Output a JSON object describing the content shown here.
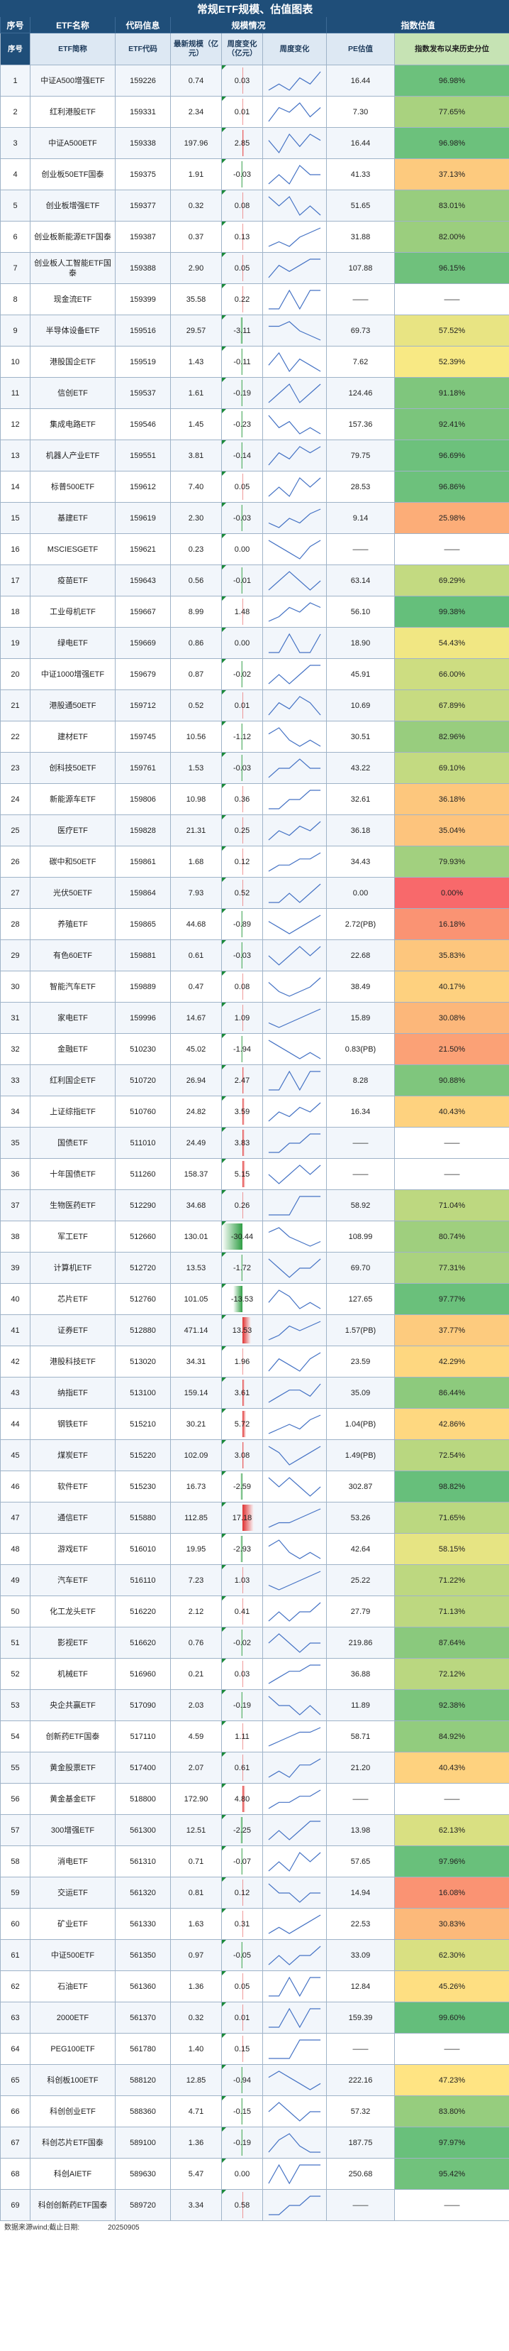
{
  "title": "常规ETF规模、估值图表",
  "groups": {
    "seq": "序号",
    "name": "ETF名称",
    "code": "代码信息",
    "scale": "规模情况",
    "valuation": "指数估值"
  },
  "columns": {
    "name": "ETF简称",
    "code": "ETF代码",
    "scale": "最新规模（亿元）",
    "flow": "周度变化（亿元）",
    "trend": "周度变化",
    "pe": "PE估值",
    "pct": "指数发布以来历史分位"
  },
  "colors": {
    "header": "#1f4e79",
    "pos_flow": "#e03131",
    "neg_flow": "#2f9e44",
    "pct_low": "#f8696b",
    "pct_mid": "#ffeb84",
    "pct_high": "#63be7b"
  },
  "rows": [
    {
      "seq": "1",
      "name": "中证A500增强ETF",
      "code": "159226",
      "scale": "0.74",
      "flow": "0.03",
      "pe": "16.44",
      "pct": "96.98%",
      "trend": [
        3,
        4,
        3,
        5,
        4,
        6
      ]
    },
    {
      "seq": "2",
      "name": "红利港股ETF",
      "code": "159331",
      "scale": "2.34",
      "flow": "0.01",
      "pe": "7.30",
      "pct": "77.65%",
      "trend": [
        2,
        5,
        4,
        6,
        3,
        5
      ]
    },
    {
      "seq": "3",
      "name": "中证A500ETF",
      "code": "159338",
      "scale": "197.96",
      "flow": "2.85",
      "pe": "16.44",
      "pct": "96.98%",
      "trend": [
        5,
        3,
        6,
        4,
        6,
        5
      ]
    },
    {
      "seq": "4",
      "name": "创业板50ETF国泰",
      "code": "159375",
      "scale": "1.91",
      "flow": "-0.03",
      "pe": "41.33",
      "pct": "37.13%",
      "trend": [
        3,
        4,
        3,
        5,
        4,
        4
      ]
    },
    {
      "seq": "5",
      "name": "创业板增强ETF",
      "code": "159377",
      "scale": "0.32",
      "flow": "0.08",
      "pe": "51.65",
      "pct": "83.01%",
      "trend": [
        5,
        4,
        5,
        3,
        4,
        3
      ]
    },
    {
      "seq": "6",
      "name": "创业板新能源ETF国泰",
      "code": "159387",
      "scale": "0.37",
      "flow": "0.13",
      "pe": "31.88",
      "pct": "82.00%",
      "trend": [
        2,
        3,
        2,
        4,
        5,
        6
      ]
    },
    {
      "seq": "7",
      "name": "创业板人工智能ETF国泰",
      "code": "159388",
      "scale": "2.90",
      "flow": "0.05",
      "pe": "107.88",
      "pct": "96.15%",
      "trend": [
        3,
        5,
        4,
        5,
        6,
        6
      ]
    },
    {
      "seq": "8",
      "name": "现金流ETF",
      "code": "159399",
      "scale": "35.58",
      "flow": "0.22",
      "pe": "——",
      "pct": "——",
      "trend": [
        3,
        3,
        4,
        3,
        4,
        4
      ]
    },
    {
      "seq": "9",
      "name": "半导体设备ETF",
      "code": "159516",
      "scale": "29.57",
      "flow": "-3.11",
      "pe": "69.73",
      "pct": "57.52%",
      "trend": [
        5,
        5,
        6,
        4,
        3,
        2
      ]
    },
    {
      "seq": "10",
      "name": "港股国企ETF",
      "code": "159519",
      "scale": "1.43",
      "flow": "-0.11",
      "pe": "7.62",
      "pct": "52.39%",
      "trend": [
        4,
        6,
        3,
        5,
        4,
        3
      ]
    },
    {
      "seq": "11",
      "name": "信创ETF",
      "code": "159537",
      "scale": "1.61",
      "flow": "-0.19",
      "pe": "124.46",
      "pct": "91.18%",
      "trend": [
        3,
        4,
        5,
        3,
        4,
        5
      ]
    },
    {
      "seq": "12",
      "name": "集成电路ETF",
      "code": "159546",
      "scale": "1.45",
      "flow": "-0.23",
      "pe": "157.36",
      "pct": "92.41%",
      "trend": [
        6,
        4,
        5,
        3,
        4,
        3
      ]
    },
    {
      "seq": "13",
      "name": "机器人产业ETF",
      "code": "159551",
      "scale": "3.81",
      "flow": "-0.14",
      "pe": "79.75",
      "pct": "96.69%",
      "trend": [
        2,
        4,
        3,
        5,
        4,
        5
      ]
    },
    {
      "seq": "14",
      "name": "标普500ETF",
      "code": "159612",
      "scale": "7.40",
      "flow": "0.05",
      "pe": "28.53",
      "pct": "96.86%",
      "trend": [
        4,
        5,
        4,
        6,
        5,
        6
      ]
    },
    {
      "seq": "15",
      "name": "基建ETF",
      "code": "159619",
      "scale": "2.30",
      "flow": "-0.03",
      "pe": "9.14",
      "pct": "25.98%",
      "trend": [
        3,
        2,
        4,
        3,
        5,
        6
      ]
    },
    {
      "seq": "16",
      "name": "MSCIESGETF",
      "code": "159621",
      "scale": "0.23",
      "flow": "0.00",
      "pe": "——",
      "pct": "——",
      "trend": [
        5,
        4,
        3,
        2,
        4,
        5
      ]
    },
    {
      "seq": "17",
      "name": "疫苗ETF",
      "code": "159643",
      "scale": "0.56",
      "flow": "-0.01",
      "pe": "63.14",
      "pct": "69.29%",
      "trend": [
        3,
        4,
        5,
        4,
        3,
        4
      ]
    },
    {
      "seq": "18",
      "name": "工业母机ETF",
      "code": "159667",
      "scale": "8.99",
      "flow": "1.48",
      "pe": "56.10",
      "pct": "99.38%",
      "trend": [
        2,
        3,
        5,
        4,
        6,
        5
      ]
    },
    {
      "seq": "19",
      "name": "绿电ETF",
      "code": "159669",
      "scale": "0.86",
      "flow": "0.00",
      "pe": "18.90",
      "pct": "54.43%",
      "trend": [
        3,
        3,
        4,
        3,
        3,
        4
      ]
    },
    {
      "seq": "20",
      "name": "中证1000增强ETF",
      "code": "159679",
      "scale": "0.87",
      "flow": "-0.02",
      "pe": "45.91",
      "pct": "66.00%",
      "trend": [
        4,
        5,
        4,
        5,
        6,
        6
      ]
    },
    {
      "seq": "21",
      "name": "港股通50ETF",
      "code": "159712",
      "scale": "0.52",
      "flow": "0.01",
      "pe": "10.69",
      "pct": "67.89%",
      "trend": [
        3,
        5,
        4,
        6,
        5,
        3
      ]
    },
    {
      "seq": "22",
      "name": "建材ETF",
      "code": "159745",
      "scale": "10.56",
      "flow": "-1.12",
      "pe": "30.51",
      "pct": "82.96%",
      "trend": [
        5,
        6,
        4,
        3,
        4,
        3
      ]
    },
    {
      "seq": "23",
      "name": "创科技50ETF",
      "code": "159761",
      "scale": "1.53",
      "flow": "-0.03",
      "pe": "43.22",
      "pct": "69.10%",
      "trend": [
        3,
        4,
        4,
        5,
        4,
        4
      ]
    },
    {
      "seq": "24",
      "name": "新能源车ETF",
      "code": "159806",
      "scale": "10.98",
      "flow": "0.36",
      "pe": "32.61",
      "pct": "36.18%",
      "trend": [
        4,
        4,
        5,
        5,
        6,
        6
      ]
    },
    {
      "seq": "25",
      "name": "医疗ETF",
      "code": "159828",
      "scale": "21.31",
      "flow": "0.25",
      "pe": "36.18",
      "pct": "35.04%",
      "trend": [
        2,
        4,
        3,
        5,
        4,
        6
      ]
    },
    {
      "seq": "26",
      "name": "碳中和50ETF",
      "code": "159861",
      "scale": "1.68",
      "flow": "0.12",
      "pe": "34.43",
      "pct": "79.93%",
      "trend": [
        3,
        4,
        4,
        5,
        5,
        6
      ]
    },
    {
      "seq": "27",
      "name": "光伏50ETF",
      "code": "159864",
      "scale": "7.93",
      "flow": "0.52",
      "pe": "0.00",
      "pct": "0.00%",
      "trend": [
        3,
        3,
        4,
        3,
        4,
        5
      ]
    },
    {
      "seq": "28",
      "name": "养殖ETF",
      "code": "159865",
      "scale": "44.68",
      "flow": "-0.89",
      "pe": "2.72(PB)",
      "pct": "16.18%",
      "trend": [
        5,
        4,
        3,
        4,
        5,
        6
      ]
    },
    {
      "seq": "29",
      "name": "有色60ETF",
      "code": "159881",
      "scale": "0.61",
      "flow": "-0.03",
      "pe": "22.68",
      "pct": "35.83%",
      "trend": [
        4,
        3,
        4,
        5,
        4,
        5
      ]
    },
    {
      "seq": "30",
      "name": "智能汽车ETF",
      "code": "159889",
      "scale": "0.47",
      "flow": "0.08",
      "pe": "38.49",
      "pct": "40.17%",
      "trend": [
        5,
        3,
        2,
        3,
        4,
        6
      ]
    },
    {
      "seq": "31",
      "name": "家电ETF",
      "code": "159996",
      "scale": "14.67",
      "flow": "1.09",
      "pe": "15.89",
      "pct": "30.08%",
      "trend": [
        3,
        2,
        3,
        4,
        5,
        6
      ]
    },
    {
      "seq": "32",
      "name": "金融ETF",
      "code": "510230",
      "scale": "45.02",
      "flow": "-1.94",
      "pe": "0.83(PB)",
      "pct": "21.50%",
      "trend": [
        6,
        5,
        4,
        3,
        4,
        3
      ]
    },
    {
      "seq": "33",
      "name": "红利国企ETF",
      "code": "510720",
      "scale": "26.94",
      "flow": "2.47",
      "pe": "8.28",
      "pct": "90.88%",
      "trend": [
        3,
        3,
        4,
        3,
        4,
        4
      ]
    },
    {
      "seq": "34",
      "name": "上证综指ETF",
      "code": "510760",
      "scale": "24.82",
      "flow": "3.59",
      "pe": "16.34",
      "pct": "40.43%",
      "trend": [
        2,
        4,
        3,
        5,
        4,
        6
      ]
    },
    {
      "seq": "35",
      "name": "国债ETF",
      "code": "511010",
      "scale": "24.49",
      "flow": "3.83",
      "pe": "——",
      "pct": "——",
      "trend": [
        3,
        3,
        4,
        4,
        5,
        5
      ]
    },
    {
      "seq": "36",
      "name": "十年国债ETF",
      "code": "511260",
      "scale": "158.37",
      "flow": "5.15",
      "pe": "——",
      "pct": "——",
      "trend": [
        4,
        3,
        4,
        5,
        4,
        5
      ]
    },
    {
      "seq": "37",
      "name": "生物医药ETF",
      "code": "512290",
      "scale": "34.68",
      "flow": "0.26",
      "pe": "58.92",
      "pct": "71.04%",
      "trend": [
        3,
        3,
        3,
        4,
        4,
        4
      ]
    },
    {
      "seq": "38",
      "name": "军工ETF",
      "code": "512660",
      "scale": "130.01",
      "flow": "-30.44",
      "pe": "108.99",
      "pct": "80.74%",
      "trend": [
        5,
        6,
        4,
        3,
        2,
        3
      ]
    },
    {
      "seq": "39",
      "name": "计算机ETF",
      "code": "512720",
      "scale": "13.53",
      "flow": "-1.72",
      "pe": "69.70",
      "pct": "77.31%",
      "trend": [
        5,
        4,
        3,
        4,
        4,
        5
      ]
    },
    {
      "seq": "40",
      "name": "芯片ETF",
      "code": "512760",
      "scale": "101.05",
      "flow": "-13.53",
      "pe": "127.65",
      "pct": "97.77%",
      "trend": [
        4,
        6,
        5,
        3,
        4,
        3
      ]
    },
    {
      "seq": "41",
      "name": "证券ETF",
      "code": "512880",
      "scale": "471.14",
      "flow": "13.53",
      "pe": "1.57(PB)",
      "pct": "37.77%",
      "trend": [
        2,
        3,
        5,
        4,
        5,
        6
      ]
    },
    {
      "seq": "42",
      "name": "港股科技ETF",
      "code": "513020",
      "scale": "34.31",
      "flow": "1.96",
      "pe": "23.59",
      "pct": "42.29%",
      "trend": [
        3,
        5,
        4,
        3,
        5,
        6
      ]
    },
    {
      "seq": "43",
      "name": "纳指ETF",
      "code": "513100",
      "scale": "159.14",
      "flow": "3.61",
      "pe": "35.09",
      "pct": "86.44%",
      "trend": [
        3,
        4,
        5,
        5,
        4,
        6
      ]
    },
    {
      "seq": "44",
      "name": "钢铁ETF",
      "code": "515210",
      "scale": "30.21",
      "flow": "5.72",
      "pe": "1.04(PB)",
      "pct": "42.86%",
      "trend": [
        2,
        3,
        4,
        3,
        5,
        6
      ]
    },
    {
      "seq": "45",
      "name": "煤炭ETF",
      "code": "515220",
      "scale": "102.09",
      "flow": "3.08",
      "pe": "1.49(PB)",
      "pct": "72.54%",
      "trend": [
        6,
        5,
        3,
        4,
        5,
        6
      ]
    },
    {
      "seq": "46",
      "name": "软件ETF",
      "code": "515230",
      "scale": "16.73",
      "flow": "-2.59",
      "pe": "302.87",
      "pct": "98.82%",
      "trend": [
        5,
        4,
        5,
        4,
        3,
        4
      ]
    },
    {
      "seq": "47",
      "name": "通信ETF",
      "code": "515880",
      "scale": "112.85",
      "flow": "17.18",
      "pe": "53.26",
      "pct": "71.65%",
      "trend": [
        2,
        3,
        3,
        4,
        5,
        6
      ]
    },
    {
      "seq": "48",
      "name": "游戏ETF",
      "code": "516010",
      "scale": "19.95",
      "flow": "-2.93",
      "pe": "42.64",
      "pct": "58.15%",
      "trend": [
        5,
        6,
        4,
        3,
        4,
        3
      ]
    },
    {
      "seq": "49",
      "name": "汽车ETF",
      "code": "516110",
      "scale": "7.23",
      "flow": "1.03",
      "pe": "25.22",
      "pct": "71.22%",
      "trend": [
        3,
        2,
        3,
        4,
        5,
        6
      ]
    },
    {
      "seq": "50",
      "name": "化工龙头ETF",
      "code": "516220",
      "scale": "2.12",
      "flow": "0.41",
      "pe": "27.79",
      "pct": "71.13%",
      "trend": [
        3,
        4,
        3,
        4,
        4,
        5
      ]
    },
    {
      "seq": "51",
      "name": "影视ETF",
      "code": "516620",
      "scale": "0.76",
      "flow": "-0.02",
      "pe": "219.86",
      "pct": "87.64%",
      "trend": [
        4,
        5,
        4,
        3,
        4,
        4
      ]
    },
    {
      "seq": "52",
      "name": "机械ETF",
      "code": "516960",
      "scale": "0.21",
      "flow": "0.03",
      "pe": "36.88",
      "pct": "72.12%",
      "trend": [
        2,
        3,
        4,
        4,
        5,
        5
      ]
    },
    {
      "seq": "53",
      "name": "央企共赢ETF",
      "code": "517090",
      "scale": "2.03",
      "flow": "-0.19",
      "pe": "11.89",
      "pct": "92.38%",
      "trend": [
        5,
        4,
        4,
        3,
        4,
        3
      ]
    },
    {
      "seq": "54",
      "name": "创新药ETF国泰",
      "code": "517110",
      "scale": "4.59",
      "flow": "1.11",
      "pe": "58.71",
      "pct": "84.92%",
      "trend": [
        2,
        3,
        4,
        5,
        5,
        6
      ]
    },
    {
      "seq": "55",
      "name": "黄金股票ETF",
      "code": "517400",
      "scale": "2.07",
      "flow": "0.61",
      "pe": "21.20",
      "pct": "40.43%",
      "trend": [
        3,
        4,
        3,
        5,
        5,
        6
      ]
    },
    {
      "seq": "56",
      "name": "黄金基金ETF",
      "code": "518800",
      "scale": "172.90",
      "flow": "4.80",
      "pe": "——",
      "pct": "——",
      "trend": [
        3,
        4,
        4,
        5,
        5,
        6
      ]
    },
    {
      "seq": "57",
      "name": "300增强ETF",
      "code": "561300",
      "scale": "12.51",
      "flow": "-2.25",
      "pe": "13.98",
      "pct": "62.13%",
      "trend": [
        4,
        5,
        4,
        5,
        6,
        6
      ]
    },
    {
      "seq": "58",
      "name": "消电ETF",
      "code": "561310",
      "scale": "0.71",
      "flow": "-0.07",
      "pe": "57.65",
      "pct": "97.96%",
      "trend": [
        3,
        4,
        3,
        5,
        4,
        5
      ]
    },
    {
      "seq": "59",
      "name": "交运ETF",
      "code": "561320",
      "scale": "0.81",
      "flow": "0.12",
      "pe": "14.94",
      "pct": "16.08%",
      "trend": [
        5,
        4,
        4,
        3,
        4,
        4
      ]
    },
    {
      "seq": "60",
      "name": "矿业ETF",
      "code": "561330",
      "scale": "1.63",
      "flow": "0.31",
      "pe": "22.53",
      "pct": "30.83%",
      "trend": [
        3,
        4,
        3,
        4,
        5,
        6
      ]
    },
    {
      "seq": "61",
      "name": "中证500ETF",
      "code": "561350",
      "scale": "0.97",
      "flow": "-0.05",
      "pe": "33.09",
      "pct": "62.30%",
      "trend": [
        4,
        5,
        4,
        5,
        5,
        6
      ]
    },
    {
      "seq": "62",
      "name": "石油ETF",
      "code": "561360",
      "scale": "1.36",
      "flow": "0.05",
      "pe": "12.84",
      "pct": "45.26%",
      "trend": [
        3,
        3,
        4,
        3,
        4,
        4
      ]
    },
    {
      "seq": "63",
      "name": "2000ETF",
      "code": "561370",
      "scale": "0.32",
      "flow": "0.01",
      "pe": "159.39",
      "pct": "99.60%",
      "trend": [
        4,
        4,
        5,
        4,
        5,
        5
      ]
    },
    {
      "seq": "64",
      "name": "PEG100ETF",
      "code": "561780",
      "scale": "1.40",
      "flow": "0.15",
      "pe": "——",
      "pct": "——",
      "trend": [
        3,
        3,
        3,
        4,
        4,
        4
      ]
    },
    {
      "seq": "65",
      "name": "科创板100ETF",
      "code": "588120",
      "scale": "12.85",
      "flow": "-0.94",
      "pe": "222.16",
      "pct": "47.23%",
      "trend": [
        5,
        6,
        5,
        4,
        3,
        4
      ]
    },
    {
      "seq": "66",
      "name": "科创创业ETF",
      "code": "588360",
      "scale": "4.71",
      "flow": "-0.15",
      "pe": "57.32",
      "pct": "83.80%",
      "trend": [
        4,
        5,
        4,
        3,
        4,
        4
      ]
    },
    {
      "seq": "67",
      "name": "科创芯片ETF国泰",
      "code": "589100",
      "scale": "1.36",
      "flow": "-0.19",
      "pe": "187.75",
      "pct": "97.97%",
      "trend": [
        3,
        5,
        6,
        4,
        3,
        3
      ]
    },
    {
      "seq": "68",
      "name": "科创AIETF",
      "code": "589630",
      "scale": "5.47",
      "flow": "0.00",
      "pe": "250.68",
      "pct": "95.42%",
      "trend": [
        3,
        4,
        3,
        4,
        4,
        4
      ]
    },
    {
      "seq": "69",
      "name": "科创创新药ETF国泰",
      "code": "589720",
      "scale": "3.34",
      "flow": "0.58",
      "pe": "——",
      "pct": "——",
      "trend": [
        3,
        3,
        4,
        4,
        5,
        5
      ]
    }
  ],
  "footer": {
    "source": "数据来源wind;截止日期:",
    "date": "20250905"
  }
}
